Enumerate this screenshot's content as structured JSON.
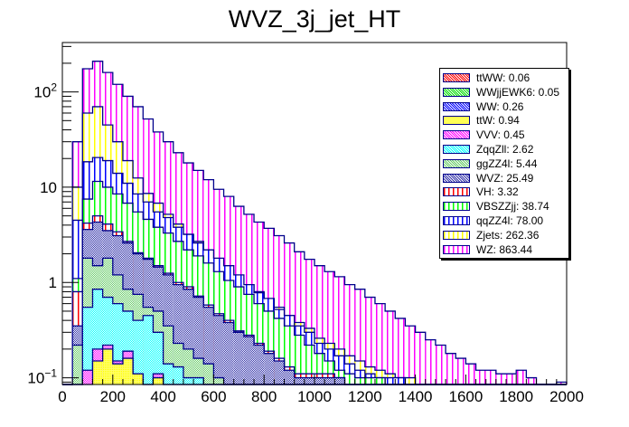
{
  "chart_data": {
    "type": "bar",
    "stacked": true,
    "title": "WVZ_3j_jet_HT",
    "xlabel": "",
    "ylabel": "",
    "xlim": [
      0,
      2000
    ],
    "ylim": [
      0.085,
      330
    ],
    "yscale": "log",
    "bin_width": 40,
    "x_ticks": [
      "0",
      "200",
      "400",
      "600",
      "800",
      "1000",
      "1200",
      "1400",
      "1600",
      "1800",
      "2000"
    ],
    "y_tick_labels": [
      "10^-1",
      "1",
      "10",
      "10^2"
    ],
    "legend_position": "top-right",
    "series": [
      {
        "name": "ttWW",
        "label": "ttWW: 0.06",
        "color": "#ff0000",
        "pattern": "crosshatch"
      },
      {
        "name": "WWjjEWK6",
        "label": "WWjjEWK6: 0.05",
        "color": "#00ff00",
        "pattern": "crosshatch"
      },
      {
        "name": "WW",
        "label": "WW: 0.26",
        "color": "#0000ff",
        "pattern": "crosshatch"
      },
      {
        "name": "ttW",
        "label": "ttW: 0.94",
        "color": "#ffff00",
        "pattern": "solid-light"
      },
      {
        "name": "VVV",
        "label": "VVV: 0.45",
        "color": "#ff00ff",
        "pattern": "crosshatch"
      },
      {
        "name": "ZqqZll",
        "label": "ZqqZll: 2.62",
        "color": "#00ffff",
        "pattern": "crosshatch"
      },
      {
        "name": "ggZZ4l",
        "label": "ggZZ4l: 5.44",
        "color": "#66cc66",
        "pattern": "crosshatch"
      },
      {
        "name": "WVZ",
        "label": "WVZ: 25.49",
        "color": "#3333aa",
        "pattern": "crosshatch"
      },
      {
        "name": "VH",
        "label": "VH: 3.32",
        "color": "#ff0000",
        "pattern": "vertical"
      },
      {
        "name": "VBSZZjj",
        "label": "VBSZZjj: 38.74",
        "color": "#00ff00",
        "pattern": "vertical"
      },
      {
        "name": "qqZZ4l",
        "label": "qqZZ4l: 78.00",
        "color": "#0000ff",
        "pattern": "vertical"
      },
      {
        "name": "Zjets",
        "label": "Zjets: 262.36",
        "color": "#ffff00",
        "pattern": "vertical"
      },
      {
        "name": "WZ",
        "label": "WZ: 863.44",
        "color": "#ff00ff",
        "pattern": "vertical"
      }
    ],
    "stack_bottom_to_top": [
      "ttW",
      "VVV",
      "ZqqZll",
      "ggZZ4l",
      "WVZ",
      "VH",
      "VBSZZjj",
      "qqZZ4l",
      "Zjets",
      "WZ"
    ],
    "cumulative_tops": {
      "ttW": [
        0,
        0.05,
        0.08,
        0.15,
        0.2,
        0.14,
        0.16,
        0.11,
        0.05,
        0.1,
        0.04,
        0,
        0,
        0,
        0,
        0,
        0,
        0,
        0,
        0,
        0,
        0,
        0,
        0,
        0,
        0,
        0,
        0,
        0,
        0,
        0,
        0,
        0,
        0,
        0,
        0,
        0,
        0,
        0,
        0,
        0,
        0,
        0,
        0,
        0,
        0,
        0,
        0,
        0,
        0
      ],
      "VVV": [
        0,
        0.05,
        0.12,
        0.2,
        0.22,
        0.15,
        0.19,
        0.11,
        0.07,
        0.11,
        0.05,
        0,
        0,
        0,
        0,
        0,
        0,
        0,
        0,
        0,
        0,
        0,
        0,
        0,
        0,
        0,
        0,
        0,
        0,
        0,
        0,
        0,
        0,
        0,
        0,
        0,
        0,
        0,
        0,
        0,
        0,
        0,
        0,
        0,
        0,
        0,
        0,
        0,
        0,
        0
      ],
      "ZqqZll": [
        0,
        0.05,
        0.55,
        0.85,
        0.7,
        0.6,
        0.5,
        0.4,
        0.45,
        0.3,
        0.14,
        0.13,
        0.1,
        0.1,
        0,
        0,
        0,
        0,
        0,
        0,
        0,
        0,
        0,
        0,
        0,
        0,
        0,
        0,
        0,
        0,
        0,
        0,
        0,
        0,
        0,
        0,
        0,
        0,
        0,
        0,
        0,
        0,
        0,
        0,
        0,
        0,
        0,
        0,
        0,
        0
      ],
      "ggZZ4l": [
        0,
        0.22,
        1.8,
        1.5,
        1.8,
        1.2,
        0.85,
        0.75,
        0.55,
        0.5,
        0.35,
        0.23,
        0.2,
        0.16,
        0.14,
        0.1,
        0,
        0,
        0,
        0,
        0,
        0,
        0,
        0,
        0,
        0,
        0,
        0,
        0,
        0,
        0,
        0,
        0,
        0,
        0,
        0,
        0,
        0,
        0,
        0,
        0,
        0,
        0,
        0,
        0,
        0,
        0,
        0,
        0,
        0
      ],
      "WVZ": [
        0,
        0.35,
        3.6,
        4.3,
        3.5,
        3.1,
        2.6,
        2.0,
        1.75,
        1.45,
        1.2,
        0.95,
        0.85,
        0.7,
        0.55,
        0.45,
        0.38,
        0.3,
        0.27,
        0.22,
        0.18,
        0.15,
        0.12,
        0.1,
        0.1,
        0.1,
        0.1,
        0.1,
        0,
        0,
        0,
        0,
        0,
        0,
        0,
        0,
        0,
        0,
        0,
        0,
        0,
        0,
        0,
        0,
        0,
        0,
        0,
        0,
        0,
        0
      ],
      "VH": [
        0,
        0.8,
        4.2,
        5.0,
        4.1,
        3.4,
        2.7,
        2.05,
        1.8,
        1.5,
        1.25,
        1.0,
        0.9,
        0.72,
        0.58,
        0.47,
        0.4,
        0.31,
        0.28,
        0.23,
        0.19,
        0.16,
        0.13,
        0.11,
        0.11,
        0.11,
        0.11,
        0.1,
        0,
        0,
        0,
        0,
        0,
        0,
        0,
        0,
        0,
        0,
        0,
        0,
        0,
        0,
        0,
        0,
        0,
        0,
        0,
        0,
        0,
        0
      ],
      "VBSZZjj": [
        0,
        1.1,
        7.5,
        11.5,
        10.0,
        8.5,
        6.8,
        5.5,
        4.6,
        3.8,
        3.3,
        2.7,
        2.2,
        1.9,
        1.6,
        1.3,
        1.05,
        0.9,
        0.75,
        0.6,
        0.5,
        0.42,
        0.35,
        0.28,
        0.22,
        0.18,
        0.15,
        0.12,
        0.11,
        0.1,
        0.1,
        0.1,
        0,
        0,
        0,
        0,
        0,
        0,
        0,
        0,
        0,
        0,
        0,
        0,
        0,
        0,
        0,
        0,
        0,
        0
      ],
      "qqZZ4l": [
        0,
        4.5,
        18.5,
        20.5,
        19.0,
        14.0,
        11.0,
        8.5,
        7.0,
        5.5,
        4.8,
        3.8,
        3.2,
        2.6,
        2.2,
        1.8,
        1.5,
        1.2,
        0.95,
        0.78,
        0.68,
        0.52,
        0.45,
        0.35,
        0.3,
        0.23,
        0.2,
        0.17,
        0.14,
        0.12,
        0.11,
        0.1,
        0.1,
        0.1,
        0,
        0,
        0,
        0,
        0,
        0,
        0,
        0,
        0,
        0,
        0,
        0,
        0,
        0,
        0,
        0
      ],
      "Zjets": [
        0,
        10.0,
        60.0,
        70.0,
        45.0,
        30.0,
        19.0,
        12.5,
        8.6,
        6.8,
        5.2,
        4.1,
        3.2,
        2.7,
        2.1,
        1.7,
        1.35,
        1.1,
        0.95,
        0.8,
        0.65,
        0.55,
        0.45,
        0.38,
        0.33,
        0.26,
        0.23,
        0.2,
        0.17,
        0.15,
        0.13,
        0.12,
        0.11,
        0.1,
        0.1,
        0,
        0,
        0,
        0,
        0,
        0,
        0,
        0,
        0,
        0,
        0,
        0,
        0,
        0,
        0
      ],
      "WZ": [
        0,
        30.0,
        175.0,
        210.0,
        160.0,
        120.0,
        90.0,
        70.0,
        52.0,
        38.0,
        30.0,
        23.0,
        18.0,
        15.0,
        12.0,
        9.5,
        8.0,
        6.3,
        5.2,
        4.3,
        3.7,
        3.1,
        2.6,
        2.1,
        1.75,
        1.5,
        1.3,
        1.15,
        0.95,
        0.85,
        0.7,
        0.6,
        0.5,
        0.42,
        0.35,
        0.3,
        0.25,
        0.22,
        0.18,
        0.16,
        0.14,
        0.12,
        0.12,
        0.11,
        0.11,
        0.12,
        0.1,
        0,
        0,
        0.09
      ]
    }
  }
}
